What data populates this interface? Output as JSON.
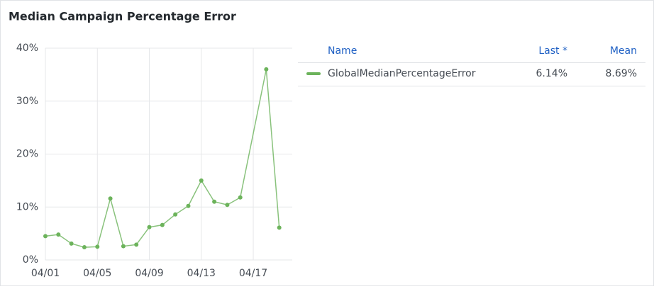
{
  "chart_data": {
    "type": "line",
    "title": "Median Campaign Percentage Error",
    "x": [
      "04/01",
      "04/02",
      "04/03",
      "04/04",
      "04/05",
      "04/06",
      "04/07",
      "04/08",
      "04/09",
      "04/10",
      "04/11",
      "04/12",
      "04/13",
      "04/14",
      "04/15",
      "04/16",
      "04/18",
      "04/19"
    ],
    "series": [
      {
        "name": "GlobalMedianPercentageError",
        "color": "#6cb35b",
        "values": [
          4.5,
          4.8,
          3.1,
          2.4,
          2.5,
          11.6,
          2.6,
          2.9,
          6.2,
          6.6,
          8.6,
          10.2,
          15.0,
          11.0,
          10.4,
          11.8,
          36.0,
          6.1
        ]
      }
    ],
    "xlim": [
      "04/01",
      "04/20"
    ],
    "xticks": [
      "04/01",
      "04/05",
      "04/09",
      "04/13",
      "04/17"
    ],
    "ylim": [
      0,
      40
    ],
    "yticks": [
      {
        "value": 0,
        "label": "0%"
      },
      {
        "value": 10,
        "label": "10%"
      },
      {
        "value": 20,
        "label": "20%"
      },
      {
        "value": 30,
        "label": "30%"
      },
      {
        "value": 40,
        "label": "40%"
      }
    ],
    "grid": true,
    "legend": {
      "headers": [
        "Name",
        "Last *",
        "Mean"
      ],
      "last": "6.14%",
      "mean": "8.69%"
    }
  }
}
